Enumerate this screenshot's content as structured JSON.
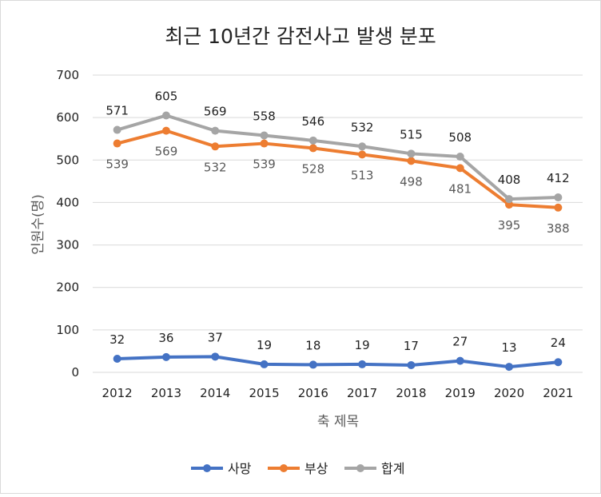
{
  "chart_data": {
    "type": "line",
    "title": "최근 10년간 감전사고 발생 분포",
    "xlabel": "축 제목",
    "ylabel": "인원수(명)",
    "categories": [
      "2012",
      "2013",
      "2014",
      "2015",
      "2016",
      "2017",
      "2018",
      "2019",
      "2020",
      "2021"
    ],
    "ylim": [
      0,
      700
    ],
    "yticks": [
      0,
      100,
      200,
      300,
      400,
      500,
      600,
      700
    ],
    "grid": true,
    "legend": "bottom",
    "series": [
      {
        "name": "사망",
        "color": "#4472C4",
        "label_position": "above",
        "values": [
          32,
          36,
          37,
          19,
          18,
          19,
          17,
          27,
          13,
          24
        ]
      },
      {
        "name": "부상",
        "color": "#ED7D31",
        "label_position": "below",
        "values": [
          539,
          569,
          532,
          539,
          528,
          513,
          498,
          481,
          395,
          388
        ]
      },
      {
        "name": "합계",
        "color": "#A5A5A5",
        "label_position": "above",
        "values": [
          571,
          605,
          569,
          558,
          546,
          532,
          515,
          508,
          408,
          412
        ]
      }
    ]
  }
}
